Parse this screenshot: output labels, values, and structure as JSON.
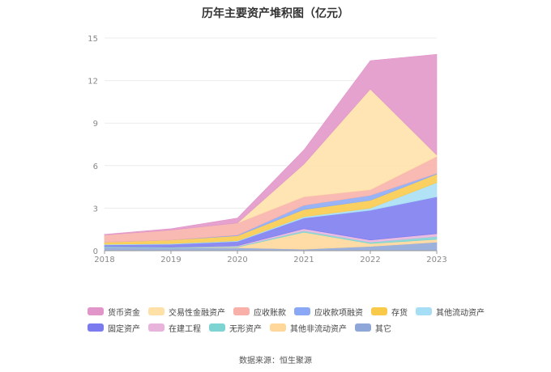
{
  "title": "历年主要资产堆积图（亿元）",
  "source": "数据来源：恒生聚源",
  "chart_data": {
    "type": "area",
    "stacked": true,
    "title": "历年主要资产堆积图（亿元）",
    "xlabel": "",
    "ylabel": "",
    "categories": [
      "2018",
      "2019",
      "2020",
      "2021",
      "2022",
      "2023"
    ],
    "ylim": [
      0,
      15
    ],
    "yticks": [
      0,
      3,
      6,
      9,
      12,
      15
    ],
    "grid": true,
    "legend_position": "bottom",
    "series": [
      {
        "name": "其它",
        "color": "#8fa6d8",
        "values": [
          0.25,
          0.2,
          0.2,
          0.1,
          0.3,
          0.6
        ]
      },
      {
        "name": "其他非流动资产",
        "color": "#ffd79a",
        "values": [
          0.0,
          0.0,
          0.05,
          1.2,
          0.2,
          0.2
        ]
      },
      {
        "name": "无形资产",
        "color": "#7ed3d3",
        "values": [
          0.05,
          0.05,
          0.05,
          0.1,
          0.1,
          0.2
        ]
      },
      {
        "name": "在建工程",
        "color": "#e8b4dc",
        "values": [
          0.0,
          0.0,
          0.05,
          0.15,
          0.15,
          0.2
        ]
      },
      {
        "name": "固定资产",
        "color": "#7b7bef",
        "values": [
          0.1,
          0.2,
          0.3,
          0.75,
          2.1,
          2.6
        ]
      },
      {
        "name": "其他流动资产",
        "color": "#a6def5",
        "values": [
          0.05,
          0.05,
          0.05,
          0.1,
          0.15,
          1.0
        ]
      },
      {
        "name": "存货",
        "color": "#f9c94a",
        "values": [
          0.15,
          0.25,
          0.35,
          0.5,
          0.55,
          0.6
        ]
      },
      {
        "name": "应收款项融资",
        "color": "#8aa8f5",
        "values": [
          0.0,
          0.0,
          0.05,
          0.3,
          0.35,
          0.05
        ]
      },
      {
        "name": "应收账款",
        "color": "#f8b0a8",
        "values": [
          0.5,
          0.7,
          0.85,
          0.6,
          0.4,
          1.2
        ]
      },
      {
        "name": "交易性金融资产",
        "color": "#ffe1a8",
        "values": [
          0.0,
          0.0,
          0.0,
          2.3,
          7.1,
          0.1
        ]
      },
      {
        "name": "货币资金",
        "color": "#e195c8",
        "values": [
          0.05,
          0.1,
          0.35,
          1.0,
          2.0,
          7.1
        ]
      }
    ],
    "legend_order": [
      "货币资金",
      "交易性金融资产",
      "应收账款",
      "应收款项融资",
      "存货",
      "其他流动资产",
      "固定资产",
      "在建工程",
      "无形资产",
      "其他非流动资产",
      "其它"
    ]
  }
}
